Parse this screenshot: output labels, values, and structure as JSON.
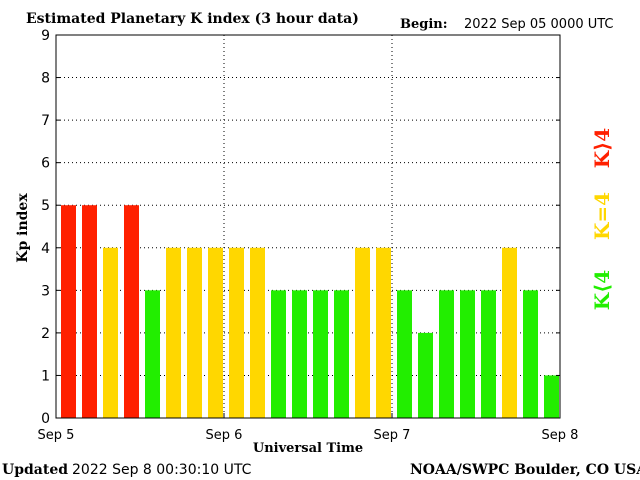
{
  "header": {
    "title": "Estimated Planetary K index (3 hour data)",
    "begin_label": "Begin:",
    "begin_value": "2022 Sep 05 0000 UTC"
  },
  "footer": {
    "updated_label": "Updated",
    "updated_value": "2022 Sep  8 00:30:10 UTC",
    "credit": "NOAA/SWPC Boulder, CO USA"
  },
  "legend": [
    {
      "label": "K⟩4",
      "color": "#ff2000"
    },
    {
      "label": "K=4",
      "color": "#ffd700"
    },
    {
      "label": "K⟨4",
      "color": "#22ee00"
    }
  ],
  "chart_data": {
    "type": "bar",
    "xlabel": "Universal Time",
    "ylabel": "Kp index",
    "ylim": [
      0,
      9
    ],
    "yticks": [
      "0",
      "1",
      "2",
      "3",
      "4",
      "5",
      "6",
      "7",
      "8",
      "9"
    ],
    "xticks": [
      "Sep 5",
      "Sep 6",
      "Sep 7",
      "Sep 8"
    ],
    "grid": "dotted, at each integer Kp and each day boundary",
    "values": [
      5,
      5,
      4,
      5,
      3,
      4,
      4,
      4,
      4,
      4,
      3,
      3,
      3,
      3,
      4,
      4,
      3,
      2,
      3,
      3,
      3,
      4,
      3,
      1
    ],
    "colors": {
      "below_4": "#22ee00",
      "equal_4": "#ffd700",
      "above_4": "#ff2000"
    }
  }
}
